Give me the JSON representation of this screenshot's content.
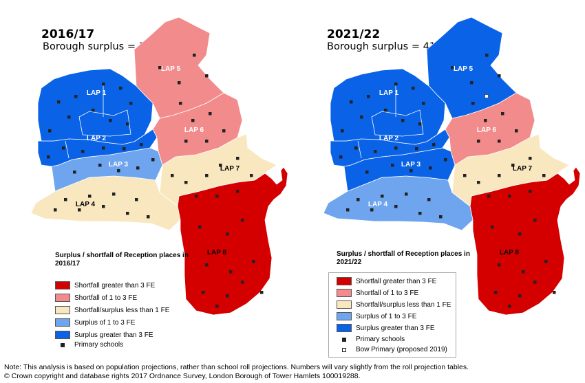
{
  "left": {
    "year": "2016/17",
    "surplus": "Borough surplus = 197",
    "legend_title": "Surplus / shortfall of Reception places in 2016/17"
  },
  "right": {
    "year": "2021/22",
    "surplus": "Borough surplus = 412",
    "legend_title": "Surplus / shortfall of Reception places in 2021/22"
  },
  "laps": [
    "LAP 1",
    "LAP 2",
    "LAP 3",
    "LAP 4",
    "LAP 5",
    "LAP 6",
    "LAP 7",
    "LAP 8"
  ],
  "colors": {
    "shortfall_gt3": "#d40000",
    "shortfall_1to3": "#f28b8b",
    "neutral": "#f8e7bf",
    "surplus_1to3": "#6fa5ef",
    "surplus_gt3": "#0a63e6"
  },
  "legend": {
    "shortfall_gt3": "Shortfall greater than 3 FE",
    "shortfall_1to3": "Shortfall of 1 to 3 FE",
    "neutral": "Shortfall/surplus less than 1 FE",
    "surplus_1to3": "Surplus of 1 to 3 FE",
    "surplus_gt3": "Surplus greater than 3 FE",
    "primary": "Primary schools",
    "bow": "Bow Primary (proposed 2019)"
  },
  "map_left": {
    "LAP 1": "surplus_gt3",
    "LAP 2": "surplus_gt3",
    "LAP 3": "surplus_1to3",
    "LAP 4": "neutral",
    "LAP 5": "shortfall_1to3",
    "LAP 6": "shortfall_1to3",
    "LAP 7": "neutral",
    "LAP 8": "shortfall_gt3"
  },
  "map_right": {
    "LAP 1": "surplus_gt3",
    "LAP 2": "surplus_gt3",
    "LAP 3": "surplus_gt3",
    "LAP 4": "surplus_1to3",
    "LAP 5": "surplus_gt3",
    "LAP 6": "shortfall_1to3",
    "LAP 7": "neutral",
    "LAP 8": "shortfall_gt3"
  },
  "footer": {
    "note": "Note: This analysis is based on population projections, rather than school roll projections. Numbers will vary slightly from the roll projection tables.",
    "copyright": "© Crown copyright and database rights 2017 Ordnance Survey, London Borough of Tower Hamlets 100019288."
  }
}
